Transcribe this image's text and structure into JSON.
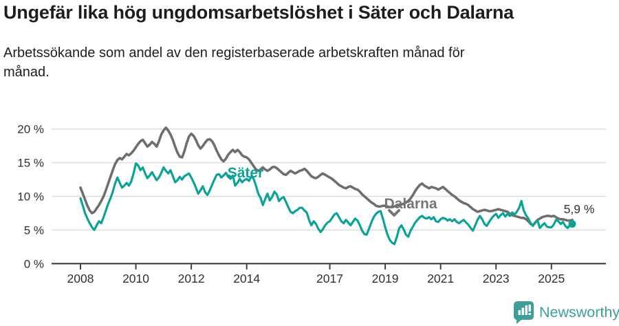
{
  "header": {
    "title": "Ungefär lika hög ungdomsarbetslöshet i Säter och Dalarna",
    "subtitle": "Arbetssökande som andel av den registerbaserade arbetskraften månad för månad."
  },
  "footer": {
    "brand": "Newsworthy"
  },
  "colors": {
    "sater": "#0ca295",
    "dalarna": "#6e6e6e",
    "label_gray": "#757575",
    "axis": "#3d3d3d",
    "grid": "#dcdcdc",
    "tick_text": "#2f2f2f",
    "brand": "#3f9e99"
  },
  "chart_data": {
    "type": "line",
    "frequency": "monthly",
    "start": "2008-01",
    "end": "2025-10",
    "unit": "%",
    "grid": true,
    "legend_position": "inline-labels",
    "ylim": [
      0,
      21
    ],
    "xlim": [
      2008,
      2026
    ],
    "y_ticks": [
      {
        "v": 0,
        "label": "0 %"
      },
      {
        "v": 5,
        "label": "5 %"
      },
      {
        "v": 10,
        "label": "10 %"
      },
      {
        "v": 15,
        "label": "15 %"
      },
      {
        "v": 20,
        "label": "20 %"
      }
    ],
    "x_ticks": [
      {
        "year": 2008,
        "label": "2008"
      },
      {
        "year": 2010,
        "label": "2010"
      },
      {
        "year": 2012,
        "label": "2012"
      },
      {
        "year": 2014,
        "label": "2014"
      },
      {
        "year": 2017,
        "label": "2017"
      },
      {
        "year": 2019,
        "label": "2019"
      },
      {
        "year": 2021,
        "label": "2021"
      },
      {
        "year": 2023,
        "label": "2023"
      },
      {
        "year": 2025,
        "label": "2025"
      }
    ],
    "series": [
      {
        "name": "Dalarna",
        "color_key": "dalarna",
        "stroke_width": 3.6,
        "values": [
          11.3,
          10.4,
          9.5,
          8.6,
          7.9,
          7.5,
          7.7,
          8.2,
          8.7,
          9.3,
          10.0,
          10.9,
          11.9,
          12.9,
          13.9,
          14.8,
          15.4,
          15.7,
          15.5,
          15.9,
          16.3,
          16.1,
          16.4,
          16.8,
          17.3,
          17.8,
          18.2,
          18.4,
          17.9,
          17.4,
          17.7,
          18.1,
          17.8,
          17.4,
          18.2,
          19.2,
          19.8,
          20.2,
          19.8,
          19.2,
          18.4,
          17.4,
          16.5,
          15.9,
          15.8,
          16.7,
          17.9,
          18.9,
          19.3,
          19.0,
          18.4,
          17.6,
          17.1,
          17.5,
          18.0,
          18.4,
          18.5,
          18.2,
          17.6,
          16.8,
          16.1,
          15.5,
          15.2,
          15.6,
          16.2,
          16.6,
          16.9,
          16.6,
          16.9,
          16.6,
          16.1,
          15.9,
          15.8,
          15.5,
          15.0,
          14.5,
          14.0,
          13.8,
          14.0,
          14.3,
          14.0,
          13.8,
          14.0,
          14.3,
          14.4,
          14.2,
          13.9,
          13.6,
          13.3,
          13.2,
          13.5,
          13.8,
          13.6,
          13.4,
          13.6,
          13.8,
          13.9,
          14.1,
          13.8,
          13.4,
          13.0,
          12.8,
          12.7,
          12.9,
          13.2,
          13.4,
          13.2,
          13.0,
          12.8,
          12.6,
          12.3,
          12.0,
          11.7,
          11.5,
          11.3,
          11.2,
          11.4,
          11.5,
          11.3,
          11.1,
          11.0,
          10.7,
          10.3,
          10.0,
          9.7,
          9.4,
          9.1,
          8.9,
          8.6,
          8.5,
          8.5,
          8.6,
          8.6,
          8.5,
          8.4,
          8.4,
          8.5,
          8.6,
          8.7,
          8.8,
          8.9,
          9.1,
          9.3,
          9.7,
          10.2,
          10.8,
          11.3,
          11.7,
          11.9,
          11.6,
          11.4,
          11.2,
          11.4,
          11.3,
          11.2,
          11.0,
          11.2,
          11.4,
          11.1,
          10.8,
          10.5,
          10.2,
          10.0,
          9.7,
          9.4,
          9.2,
          9.0,
          8.9,
          8.7,
          8.4,
          8.1,
          7.9,
          7.7,
          7.8,
          7.9,
          8.0,
          7.9,
          7.8,
          7.8,
          7.9,
          8.0,
          8.1,
          8.0,
          7.9,
          7.8,
          7.7,
          7.4,
          7.2,
          7.1,
          7.0,
          6.9,
          6.8,
          6.8,
          6.6,
          6.3,
          5.9,
          5.7,
          6.1,
          6.5,
          6.7,
          6.9,
          7.0,
          7.1,
          7.1,
          7.0,
          7.1,
          6.9,
          6.7,
          6.6,
          6.6,
          6.5,
          6.4,
          6.4,
          6.5
        ]
      },
      {
        "name": "Säter",
        "color_key": "sater",
        "stroke_width": 3.2,
        "end_dot": true,
        "values": [
          9.7,
          8.6,
          7.5,
          6.7,
          6.0,
          5.4,
          5.0,
          5.7,
          6.3,
          6.0,
          6.9,
          7.9,
          8.9,
          9.7,
          10.7,
          11.9,
          12.8,
          12.0,
          11.3,
          11.6,
          12.0,
          11.6,
          12.2,
          13.4,
          14.9,
          14.6,
          13.9,
          14.3,
          13.4,
          12.7,
          13.1,
          13.6,
          13.0,
          12.4,
          12.8,
          13.5,
          14.3,
          13.8,
          13.4,
          13.9,
          13.0,
          12.1,
          12.4,
          12.9,
          12.5,
          13.0,
          13.2,
          13.4,
          12.8,
          12.1,
          11.3,
          10.4,
          10.9,
          11.5,
          10.6,
          10.2,
          10.9,
          11.7,
          12.5,
          13.2,
          13.3,
          12.8,
          13.1,
          13.5,
          12.9,
          12.6,
          13.1,
          11.6,
          12.0,
          12.6,
          12.1,
          12.4,
          12.6,
          12.3,
          13.0,
          12.6,
          11.6,
          10.4,
          9.8,
          8.7,
          9.6,
          10.4,
          9.4,
          9.9,
          10.7,
          10.3,
          9.3,
          9.7,
          9.9,
          9.2,
          8.4,
          7.7,
          7.5,
          7.8,
          8.0,
          8.3,
          8.3,
          7.9,
          7.6,
          6.5,
          5.7,
          6.3,
          5.9,
          5.2,
          4.7,
          5.1,
          5.7,
          6.1,
          6.3,
          6.8,
          7.3,
          7.5,
          6.9,
          6.3,
          6.0,
          6.5,
          6.1,
          5.7,
          6.2,
          6.7,
          6.4,
          5.7,
          4.9,
          4.4,
          4.3,
          5.2,
          6.1,
          6.9,
          7.4,
          7.7,
          7.8,
          6.7,
          5.4,
          4.3,
          3.5,
          3.1,
          2.9,
          3.9,
          5.2,
          5.7,
          5.1,
          4.3,
          4.0,
          4.9,
          5.5,
          6.1,
          6.5,
          6.9,
          7.1,
          6.8,
          6.7,
          6.9,
          6.6,
          6.9,
          6.3,
          6.2,
          6.6,
          6.8,
          6.7,
          6.4,
          6.6,
          6.3,
          6.6,
          6.2,
          6.0,
          6.3,
          6.5,
          6.1,
          5.8,
          5.3,
          4.9,
          5.7,
          6.5,
          7.1,
          6.6,
          5.9,
          5.6,
          6.2,
          6.7,
          7.1,
          7.4,
          6.8,
          7.2,
          7.5,
          7.0,
          7.4,
          7.1,
          7.6,
          7.3,
          7.7,
          8.3,
          9.3,
          7.9,
          7.2,
          6.7,
          6.0,
          5.6,
          6.1,
          6.4,
          5.3,
          5.7,
          6.0,
          5.5,
          5.4,
          5.4,
          5.8,
          6.5,
          6.3,
          5.9,
          6.2,
          5.6,
          5.3,
          5.7,
          5.9
        ]
      }
    ],
    "annotations": {
      "sater_label": {
        "text": "Säter",
        "x": 357,
        "y": 258
      },
      "dalarna_label": {
        "text": "Dalarna",
        "x": 597,
        "y": 303
      },
      "dalarna_chevron": {
        "x": 573,
        "y": 306
      },
      "end_label": {
        "text": "5,9 %",
        "x": 842,
        "y": 310
      }
    }
  }
}
